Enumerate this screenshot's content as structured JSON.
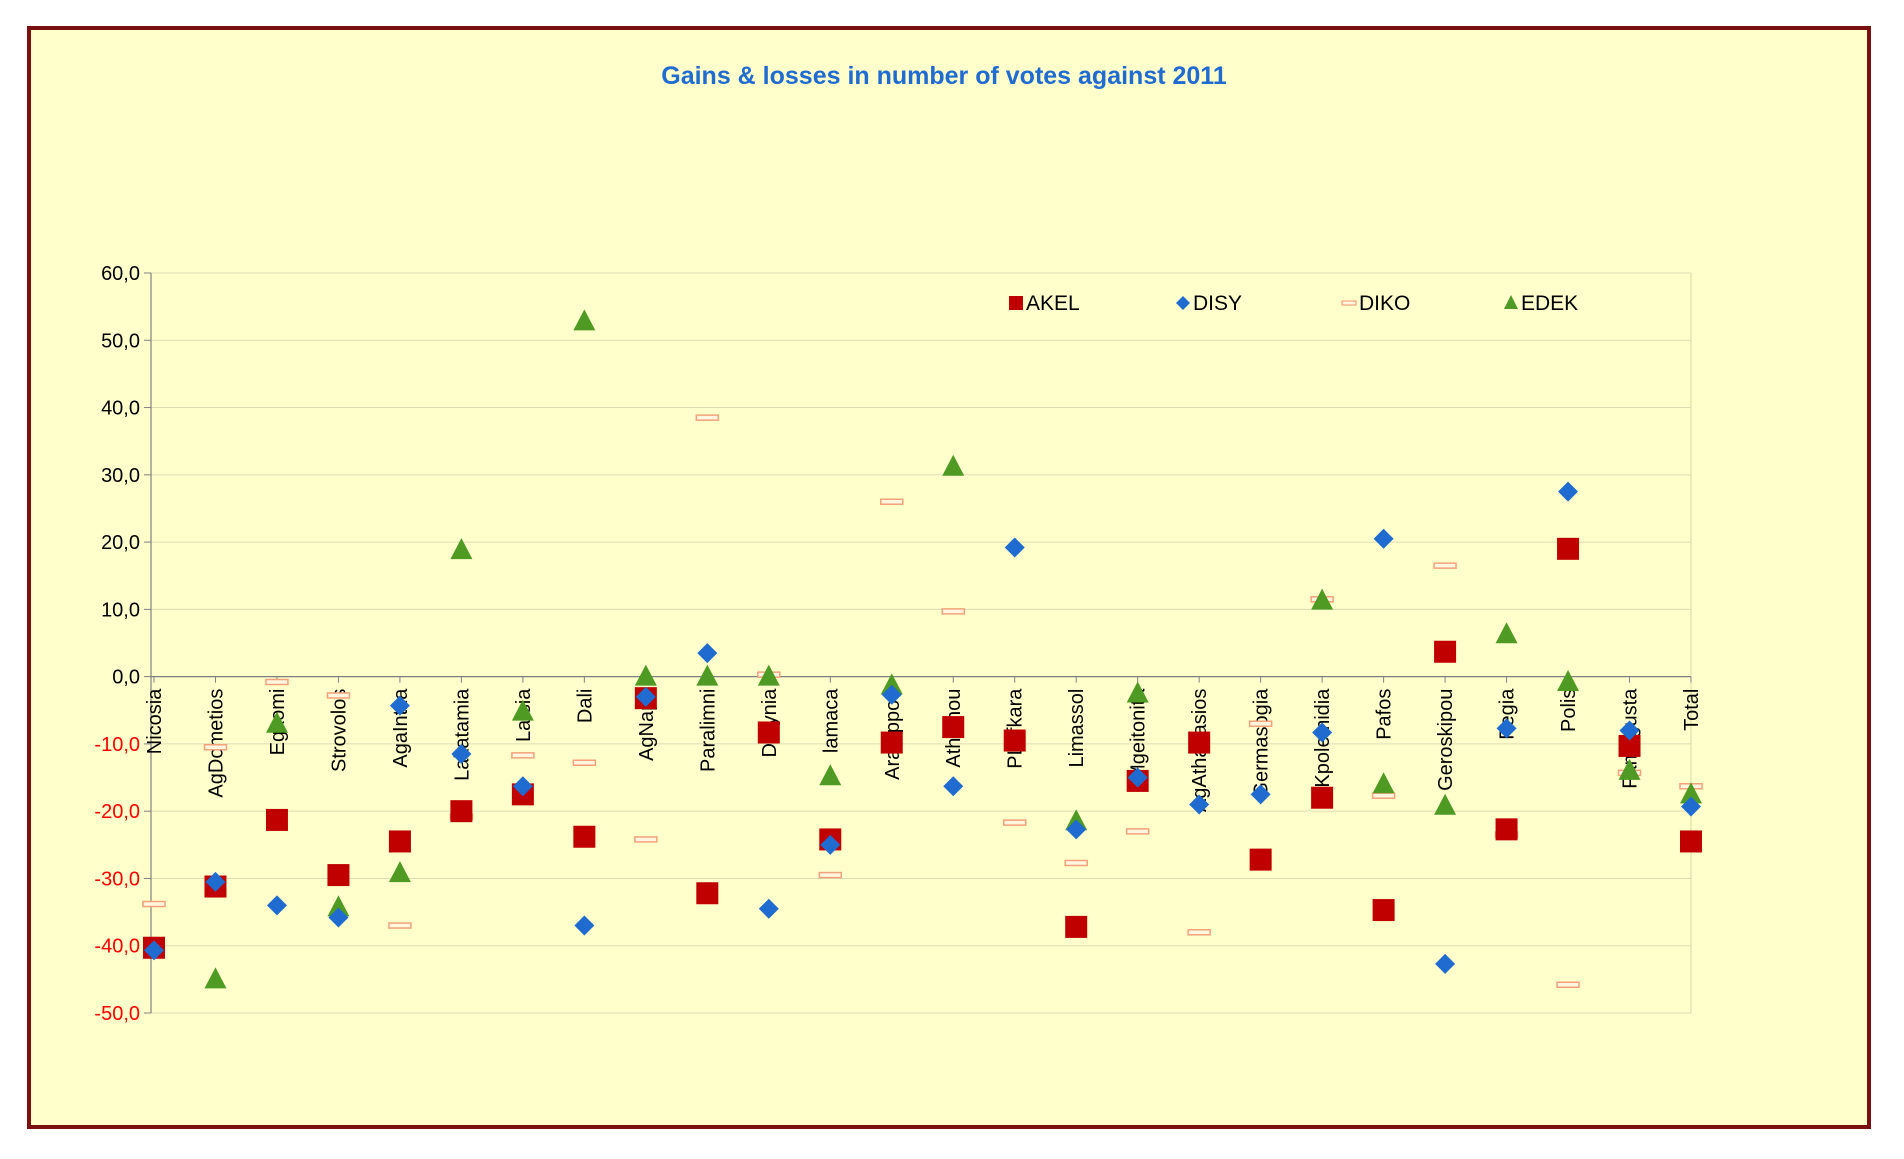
{
  "chart_data": {
    "type": "scatter",
    "title": "Gains & losses in number of votes against 2011",
    "xlabel": "",
    "ylabel": "",
    "ylim": [
      -50,
      60
    ],
    "yticks": [
      60,
      50,
      40,
      30,
      20,
      10,
      0,
      -10,
      -20,
      -30,
      -40,
      -50
    ],
    "ytick_labels": [
      "60,0",
      "50,0",
      "40,0",
      "30,0",
      "20,0",
      "10,0",
      "0,0",
      "-10,0",
      "-20,0",
      "-30,0",
      "-40,0",
      "-50,0"
    ],
    "grid": true,
    "legend_position": "top-right",
    "categories": [
      "Nicosia",
      "AgDometios",
      "Egkomi",
      "Strovolos",
      "AgaIntza",
      "Lakatamia",
      "Latsia",
      "Dali",
      "AgNapa",
      "Paralimni",
      "Derynia",
      "lamaca",
      "Aradippou",
      "Athienou",
      "PLefkara",
      "Limassol",
      "Mgeitonita",
      "AgAthanasios",
      "Germasogia",
      "Kpolemidia",
      "Pafos",
      "Geroskipou",
      "Pegia",
      "Polis",
      "Famagusta",
      "Total"
    ],
    "series": [
      {
        "name": "AKEL",
        "marker": "square",
        "color": "#c00000",
        "values": [
          -40.3,
          -31.2,
          -21.3,
          -29.5,
          -24.5,
          -20.0,
          -17.5,
          -23.8,
          -3.2,
          -32.2,
          -8.3,
          -24.2,
          -9.8,
          -7.5,
          -9.5,
          -37.2,
          -15.5,
          -9.8,
          -27.2,
          -18.0,
          -34.7,
          3.7,
          -22.7,
          19.0,
          -10.3,
          -24.5
        ]
      },
      {
        "name": "DISY",
        "marker": "diamond",
        "color": "#1f6bd0",
        "values": [
          -40.7,
          -30.5,
          -34.0,
          -35.8,
          -4.3,
          -11.5,
          -16.3,
          -37.0,
          -3.0,
          3.5,
          -34.5,
          -25.0,
          -2.7,
          -16.3,
          19.2,
          -22.7,
          -15.0,
          -19.0,
          -17.5,
          -8.3,
          20.5,
          -42.7,
          -7.7,
          27.5,
          -8.0,
          -19.3
        ]
      },
      {
        "name": "DIKO",
        "marker": "dash",
        "color": "#f2a27a",
        "values": [
          -33.8,
          -10.5,
          -0.8,
          -2.8,
          -37.0,
          -20.8,
          -11.7,
          -12.8,
          -24.2,
          38.5,
          0.3,
          -29.5,
          26.0,
          9.7,
          -21.7,
          -27.7,
          -23.0,
          -38.0,
          -7.0,
          11.5,
          -17.7,
          16.5,
          -23.5,
          -45.8,
          -14.3,
          -16.3
        ]
      },
      {
        "name": "EDEK",
        "marker": "triangle",
        "color": "#4e9a22",
        "values": [
          null,
          -45.0,
          -7.0,
          -34.3,
          -29.2,
          18.8,
          -5.2,
          52.8,
          0.0,
          0.0,
          0.0,
          -14.8,
          -1.3,
          31.2,
          null,
          -21.5,
          -2.5,
          null,
          null,
          11.3,
          -16.0,
          -19.2,
          6.3,
          -0.8,
          -14.0,
          -17.5
        ]
      }
    ]
  }
}
